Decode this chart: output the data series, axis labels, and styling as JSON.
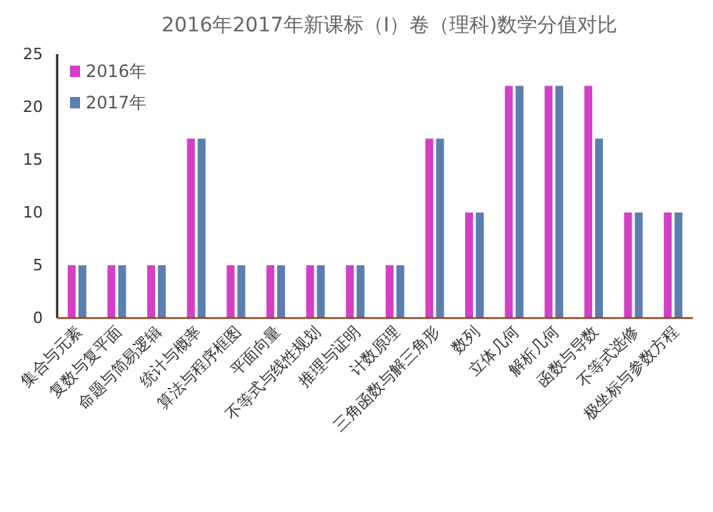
{
  "chart_data": {
    "type": "bar",
    "title": "2016年2017年新课标（Ⅰ）卷（理科)数学分值对比",
    "categories": [
      "集合与元素",
      "复数与复平面",
      "命题与简易逻辑",
      "统计与概率",
      "算法与程序框图",
      "平面向量",
      "不等式与线性规划",
      "推理与证明",
      "计数原理",
      "三角函数与解三角形",
      "数列",
      "立体几何",
      "解析几何",
      "函数与导数",
      "不等式选修",
      "极坐标与参数方程"
    ],
    "series": [
      {
        "name": "2016年",
        "color": "#d43fc6",
        "values": [
          5,
          5,
          5,
          17,
          5,
          5,
          5,
          5,
          5,
          17,
          10,
          22,
          22,
          22,
          10,
          10
        ]
      },
      {
        "name": "2017年",
        "color": "#5b7fae",
        "values": [
          5,
          5,
          5,
          17,
          5,
          5,
          5,
          5,
          5,
          17,
          10,
          22,
          22,
          17,
          10,
          10
        ]
      }
    ],
    "ylim": [
      0,
      25
    ],
    "yticks": [
      0,
      5,
      10,
      15,
      20,
      25
    ],
    "grid": false,
    "legend": "top left"
  }
}
